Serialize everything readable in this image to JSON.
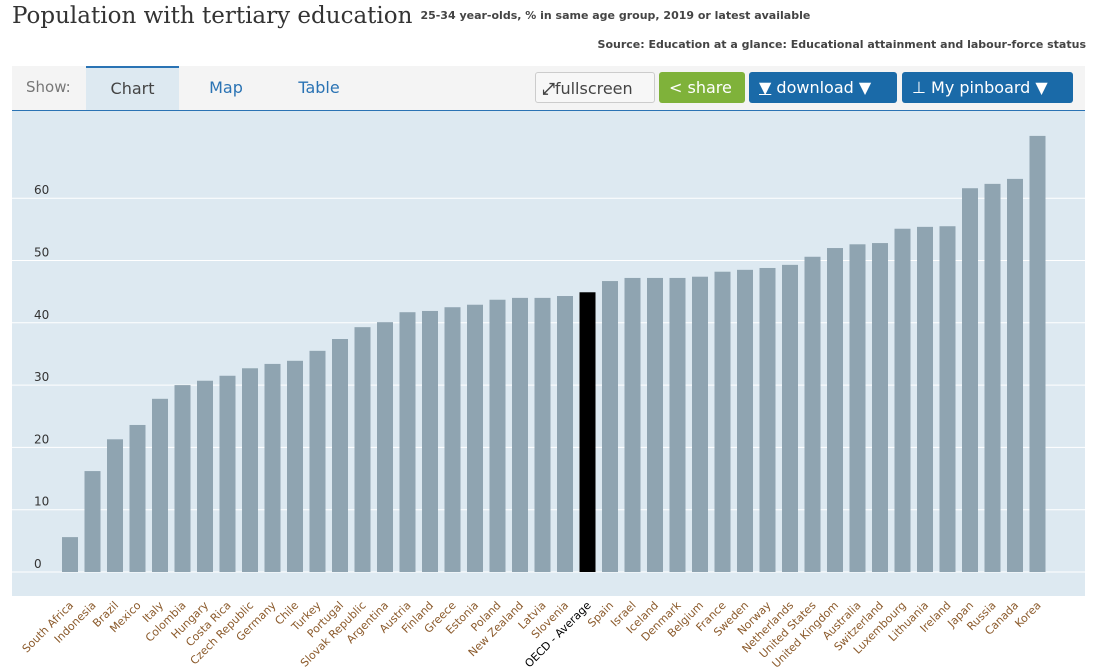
{
  "header": {
    "title": "Population with tertiary education",
    "subtitle": "25-34 year-olds, % in same age group, 2019 or latest available",
    "source": "Source: Education at a glance: Educational attainment and labour-force status"
  },
  "toolbar": {
    "show_label": "Show:",
    "tabs": [
      "Chart",
      "Map",
      "Table"
    ],
    "active_tab": "Chart",
    "fullscreen": "fullscreen",
    "share": "share",
    "download": "download ▼",
    "pinboard": "My pinboard ▼"
  },
  "colors": {
    "bar": "#8fa4b1",
    "highlight": "#000000",
    "plot_bg": "#dde9f1",
    "label": "#8b5a2b",
    "share": "#7fb23a",
    "blue": "#1a6aa8"
  },
  "chart_data": {
    "type": "bar",
    "title": "",
    "xlabel": "",
    "ylabel": "",
    "ylim": [
      0,
      70
    ],
    "yticks": [
      0,
      10,
      20,
      30,
      40,
      50,
      60
    ],
    "grid": true,
    "categories": [
      "South Africa",
      "Indonesia",
      "Brazil",
      "Mexico",
      "Italy",
      "Colombia",
      "Hungary",
      "Costa Rica",
      "Czech Republic",
      "Germany",
      "Chile",
      "Turkey",
      "Portugal",
      "Slovak Republic",
      "Argentina",
      "Austria",
      "Finland",
      "Greece",
      "Estonia",
      "Poland",
      "New Zealand",
      "Latvia",
      "Slovenia",
      "OECD - Average",
      "Spain",
      "Israel",
      "Iceland",
      "Denmark",
      "Belgium",
      "France",
      "Sweden",
      "Norway",
      "Netherlands",
      "United States",
      "United Kingdom",
      "Australia",
      "Switzerland",
      "Luxembourg",
      "Lithuania",
      "Ireland",
      "Japan",
      "Russia",
      "Canada",
      "Korea"
    ],
    "values": [
      5.6,
      16.2,
      21.3,
      23.6,
      27.8,
      30.0,
      30.7,
      31.5,
      32.7,
      33.4,
      33.9,
      35.5,
      37.4,
      39.3,
      40.1,
      41.7,
      41.9,
      42.5,
      42.9,
      43.7,
      44.0,
      44.0,
      44.3,
      44.9,
      46.7,
      47.2,
      47.2,
      47.2,
      47.4,
      48.2,
      48.5,
      48.8,
      49.3,
      50.6,
      52.0,
      52.6,
      52.8,
      55.1,
      55.4,
      55.5,
      61.6,
      62.3,
      63.1,
      70.0
    ],
    "highlight": "OECD - Average"
  }
}
